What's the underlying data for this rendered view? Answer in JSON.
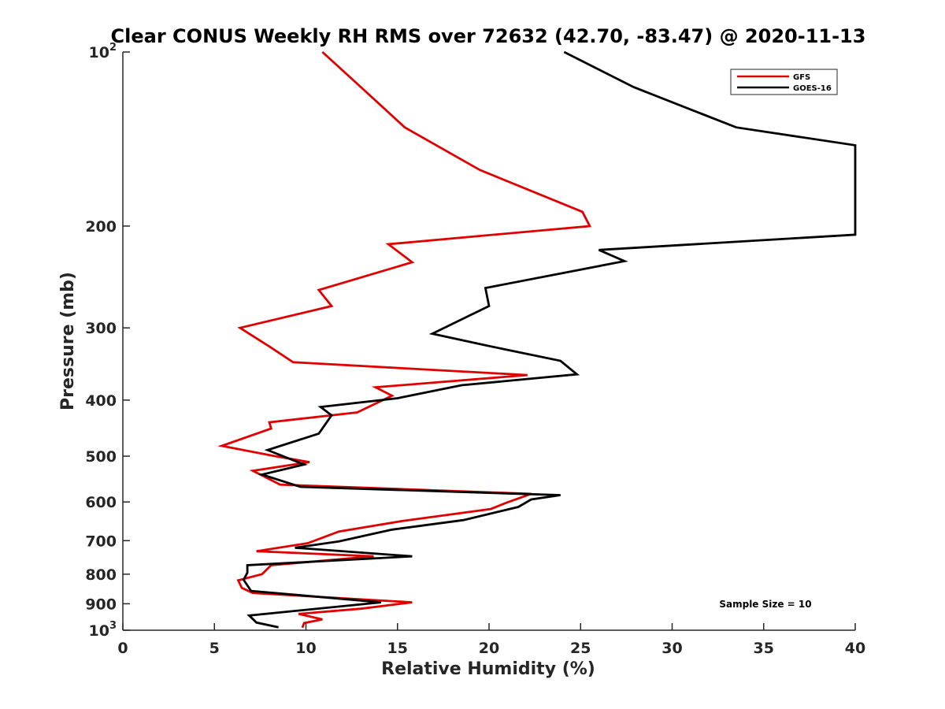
{
  "chart_data": {
    "type": "line",
    "title": "Clear CONUS Weekly RH RMS over 72632 (42.70, -83.47) @ 2020-11-13",
    "xlabel": "Relative Humidity (%)",
    "ylabel": "Pressure (mb)",
    "xlim": [
      0,
      40
    ],
    "ylim": [
      100,
      1000
    ],
    "y_scale": "log",
    "y_reversed": true,
    "grid": false,
    "legend_position": "top-right",
    "x_ticks": [
      "0",
      "5",
      "10",
      "15",
      "20",
      "25",
      "30",
      "35",
      "40"
    ],
    "y_ticks": [
      {
        "value": 100,
        "base": "10",
        "exp": "2"
      },
      {
        "value": 200,
        "label": "200"
      },
      {
        "value": 300,
        "label": "300"
      },
      {
        "value": 400,
        "label": "400"
      },
      {
        "value": 500,
        "label": "500"
      },
      {
        "value": 600,
        "label": "600"
      },
      {
        "value": 700,
        "label": "700"
      },
      {
        "value": 800,
        "label": "800"
      },
      {
        "value": 900,
        "label": "900"
      },
      {
        "value": 1000,
        "base": "10",
        "exp": "3"
      }
    ],
    "annotation": "Sample Size = 10",
    "series": [
      {
        "name": "GFS",
        "color": "#e00000",
        "points": [
          [
            10.9,
            100
          ],
          [
            13.0,
            115
          ],
          [
            15.4,
            135
          ],
          [
            19.5,
            160
          ],
          [
            25.1,
            189
          ],
          [
            25.5,
            200
          ],
          [
            14.5,
            215
          ],
          [
            15.8,
            231
          ],
          [
            10.7,
            258
          ],
          [
            11.4,
            275
          ],
          [
            6.4,
            300
          ],
          [
            8.0,
            323
          ],
          [
            9.3,
            344
          ],
          [
            22.1,
            362
          ],
          [
            13.8,
            380
          ],
          [
            14.7,
            393
          ],
          [
            12.8,
            420
          ],
          [
            8.0,
            437
          ],
          [
            8.1,
            448
          ],
          [
            5.4,
            480
          ],
          [
            8.3,
            500
          ],
          [
            10.2,
            512
          ],
          [
            7.1,
            530
          ],
          [
            8.6,
            560
          ],
          [
            22.3,
            581
          ],
          [
            21.0,
            601
          ],
          [
            20.1,
            617
          ],
          [
            15.3,
            647
          ],
          [
            11.8,
            675
          ],
          [
            10.1,
            707
          ],
          [
            7.3,
            730
          ],
          [
            13.7,
            745
          ],
          [
            8.1,
            772
          ],
          [
            7.6,
            800
          ],
          [
            6.3,
            820
          ],
          [
            6.5,
            845
          ],
          [
            7.1,
            862
          ],
          [
            15.8,
            895
          ],
          [
            13.0,
            918
          ],
          [
            9.6,
            937
          ],
          [
            10.9,
            958
          ],
          [
            9.9,
            972
          ],
          [
            9.8,
            990
          ]
        ]
      },
      {
        "name": "GOES-16",
        "color": "#000000",
        "points": [
          [
            24.1,
            100
          ],
          [
            27.9,
            115
          ],
          [
            33.5,
            135
          ],
          [
            40.0,
            145
          ],
          [
            40.0,
            207
          ],
          [
            26.0,
            220
          ],
          [
            27.4,
            230
          ],
          [
            19.8,
            256
          ],
          [
            20.0,
            275
          ],
          [
            16.9,
            307
          ],
          [
            19.9,
            322
          ],
          [
            23.9,
            342
          ],
          [
            24.8,
            361
          ],
          [
            18.5,
            377
          ],
          [
            15.0,
            397
          ],
          [
            10.8,
            411
          ],
          [
            11.4,
            425
          ],
          [
            10.7,
            457
          ],
          [
            7.9,
            488
          ],
          [
            9.9,
            517
          ],
          [
            7.6,
            538
          ],
          [
            9.7,
            565
          ],
          [
            23.9,
            584
          ],
          [
            22.3,
            594
          ],
          [
            21.6,
            612
          ],
          [
            18.6,
            645
          ],
          [
            14.7,
            670
          ],
          [
            11.8,
            702
          ],
          [
            9.4,
            720
          ],
          [
            15.8,
            745
          ],
          [
            6.8,
            772
          ],
          [
            6.8,
            795
          ],
          [
            6.6,
            818
          ],
          [
            7.0,
            855
          ],
          [
            14.1,
            895
          ],
          [
            6.9,
            943
          ],
          [
            7.3,
            970
          ],
          [
            8.5,
            988
          ]
        ]
      }
    ]
  }
}
